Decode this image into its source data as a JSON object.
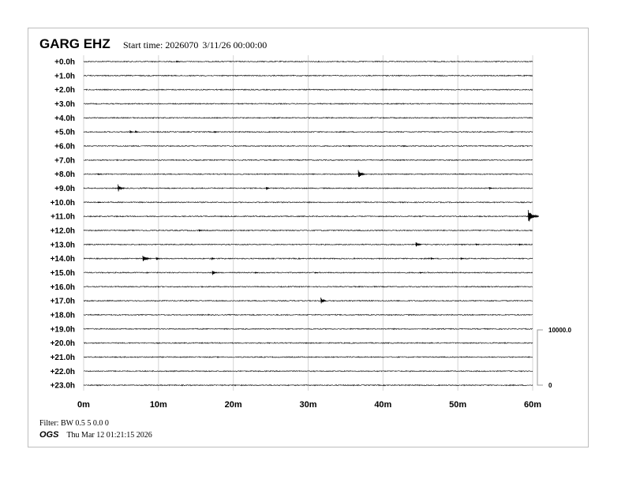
{
  "header": {
    "station": "GARG EHZ",
    "start_label": "Start time: 2026070",
    "start_date": "3/11/26 00:00:00"
  },
  "footer": {
    "filter": "Filter: BW 0.5 5 0.0 0",
    "org": "OGS",
    "generated": "Thu Mar 12 01:21:15 2026"
  },
  "chart_data": {
    "type": "line",
    "title": "GARG EHZ",
    "xlabel": "",
    "ylabel": "",
    "xlim": [
      0,
      60
    ],
    "x_ticks": [
      "0m",
      "10m",
      "20m",
      "30m",
      "40m",
      "50m",
      "60m"
    ],
    "row_labels": [
      "+0.0h",
      "+1.0h",
      "+2.0h",
      "+3.0h",
      "+4.0h",
      "+5.0h",
      "+6.0h",
      "+7.0h",
      "+8.0h",
      "+9.0h",
      "+10.0h",
      "+11.0h",
      "+12.0h",
      "+13.0h",
      "+14.0h",
      "+15.0h",
      "+16.0h",
      "+17.0h",
      "+18.0h",
      "+19.0h",
      "+20.0h",
      "+21.0h",
      "+22.0h",
      "+23.0h"
    ],
    "amplitude_scale": {
      "top_label": "10000.0",
      "bottom_label": "0",
      "max": 10000
    },
    "grid": true,
    "trace_color": "#000000",
    "events": [
      {
        "hour": 0,
        "minute": 12.5,
        "amplitude": 150
      },
      {
        "hour": 5,
        "minute": 6.3,
        "amplitude": 300
      },
      {
        "hour": 5,
        "minute": 7.0,
        "amplitude": 250
      },
      {
        "hour": 5,
        "minute": 17.6,
        "amplitude": 150
      },
      {
        "hour": 6,
        "minute": 35.5,
        "amplitude": 150
      },
      {
        "hour": 6,
        "minute": 42.8,
        "amplitude": 120
      },
      {
        "hour": 8,
        "minute": 2.0,
        "amplitude": 200
      },
      {
        "hour": 8,
        "minute": 36.8,
        "amplitude": 850
      },
      {
        "hour": 9,
        "minute": 4.7,
        "amplitude": 700
      },
      {
        "hour": 9,
        "minute": 24.5,
        "amplitude": 400
      },
      {
        "hour": 9,
        "minute": 54.3,
        "amplitude": 280
      },
      {
        "hour": 10,
        "minute": 2.0,
        "amplitude": 120
      },
      {
        "hour": 11,
        "minute": 59.5,
        "amplitude": 1300
      },
      {
        "hour": 12,
        "minute": 15.5,
        "amplitude": 280
      },
      {
        "hour": 13,
        "minute": 44.5,
        "amplitude": 700
      },
      {
        "hour": 13,
        "minute": 52.5,
        "amplitude": 200
      },
      {
        "hour": 13,
        "minute": 58.3,
        "amplitude": 200
      },
      {
        "hour": 14,
        "minute": 8.0,
        "amplitude": 850
      },
      {
        "hour": 14,
        "minute": 9.8,
        "amplitude": 400
      },
      {
        "hour": 14,
        "minute": 17.2,
        "amplitude": 300
      },
      {
        "hour": 14,
        "minute": 46.5,
        "amplitude": 250
      },
      {
        "hour": 14,
        "minute": 50.5,
        "amplitude": 180
      },
      {
        "hour": 15,
        "minute": 17.3,
        "amplitude": 550
      },
      {
        "hour": 15,
        "minute": 23.0,
        "amplitude": 150
      },
      {
        "hour": 15,
        "minute": 31.0,
        "amplitude": 120
      },
      {
        "hour": 15,
        "minute": 45.0,
        "amplitude": 120
      },
      {
        "hour": 17,
        "minute": 31.8,
        "amplitude": 700
      }
    ]
  }
}
